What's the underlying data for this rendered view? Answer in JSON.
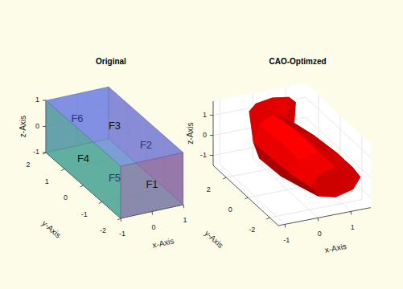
{
  "chart_data": [
    {
      "type": "box3d",
      "title": "Original",
      "xlabel": "x-Axis",
      "ylabel": "y-Axis",
      "zlabel": "z-Axis",
      "xlim": [
        -1,
        1
      ],
      "ylim": [
        -2,
        2
      ],
      "zlim": [
        -1,
        1
      ],
      "xticks": [
        -1,
        0,
        1
      ],
      "yticks": [
        -2,
        -1,
        0,
        1,
        2
      ],
      "zticks": [
        -1,
        0,
        1
      ],
      "grid": true,
      "box": {
        "x": [
          -1,
          1
        ],
        "y": [
          -2,
          2
        ],
        "z": [
          -1,
          1
        ]
      },
      "faces": [
        {
          "name": "F1",
          "color": "#86609a"
        },
        {
          "name": "F2",
          "color": "#7a5aa0"
        },
        {
          "name": "F3",
          "color": "#6e80e0"
        },
        {
          "name": "F4",
          "color": "#3f9f86"
        },
        {
          "name": "F5",
          "color": "#4aa3a3"
        },
        {
          "name": "F6",
          "color": "#5d6fd6"
        }
      ]
    },
    {
      "type": "mesh3d",
      "title": "CAO-Optimzed",
      "xlabel": "x-Axis",
      "ylabel": "y-Axis",
      "zlabel": "z-Axis",
      "xlim": [
        -1.2,
        1.6
      ],
      "ylim": [
        -2.8,
        3.2
      ],
      "zlim": [
        -1.5,
        1.7
      ],
      "xticks": [
        -1,
        0,
        1
      ],
      "yticks": [
        -2,
        0,
        2
      ],
      "zticks": [
        -1,
        0,
        1
      ],
      "grid": true,
      "color": "#ff0000",
      "sections": [
        {
          "y": 2.6,
          "points": [
            [
              1.1,
              1.2
            ],
            [
              0.9,
              1.52
            ],
            [
              0.4,
              1.65
            ],
            [
              -0.1,
              1.52
            ],
            [
              -0.3,
              1.2
            ],
            [
              -0.1,
              0.88
            ],
            [
              0.4,
              0.75
            ],
            [
              0.9,
              0.88
            ]
          ]
        },
        {
          "y": 1.3,
          "points": [
            [
              0.6,
              0.4
            ],
            [
              0.42,
              1.25
            ],
            [
              0,
              1.6
            ],
            [
              -0.42,
              1.25
            ],
            [
              -0.6,
              0.4
            ],
            [
              -0.42,
              -0.45
            ],
            [
              0,
              -0.8
            ],
            [
              0.42,
              -0.45
            ]
          ]
        },
        {
          "y": 0,
          "points": [
            [
              1.0,
              0.1
            ],
            [
              0.8,
              0.95
            ],
            [
              0.3,
              1.3
            ],
            [
              -0.2,
              0.95
            ],
            [
              -0.4,
              0.1
            ],
            [
              -0.2,
              -0.75
            ],
            [
              0.3,
              -1.1
            ],
            [
              0.8,
              -0.75
            ]
          ]
        },
        {
          "y": -1.3,
          "points": [
            [
              1.3,
              0
            ],
            [
              1.07,
              0.64
            ],
            [
              0.5,
              0.9
            ],
            [
              -0.07,
              0.64
            ],
            [
              -0.3,
              0
            ],
            [
              -0.07,
              -0.64
            ],
            [
              0.5,
              -0.9
            ],
            [
              1.07,
              -0.64
            ]
          ]
        },
        {
          "y": -2.6,
          "points": [
            [
              1.35,
              0
            ],
            [
              1.13,
              0.53
            ],
            [
              0.6,
              0.75
            ],
            [
              0.07,
              0.53
            ],
            [
              -0.15,
              0
            ],
            [
              0.07,
              -0.53
            ],
            [
              0.6,
              -0.75
            ],
            [
              1.13,
              -0.53
            ]
          ]
        }
      ]
    }
  ]
}
